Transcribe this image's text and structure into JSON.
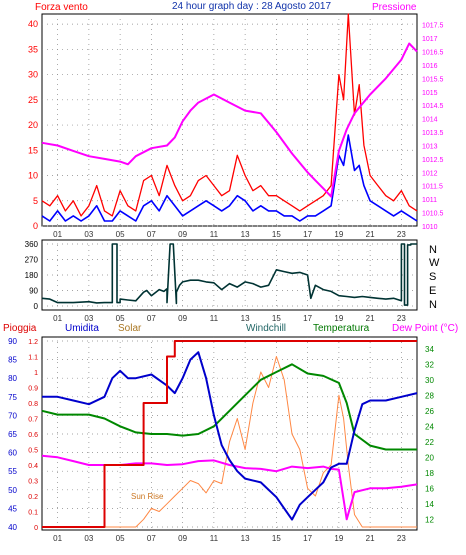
{
  "header": {
    "wind_label": "Forza vento",
    "title": "24 hour graph day : 28 Agosto 2017",
    "pressure_label": "Pressione"
  },
  "direction_labels": [
    "N",
    "W",
    "S",
    "E",
    "N"
  ],
  "lower_labels": {
    "rain": "Pioggia",
    "humidity": "Umidita",
    "solar": "Solar",
    "windchill": "Windchill",
    "temperature": "Temperatura",
    "dewpoint": "Dew Point (°C)",
    "sunrise": "Sun Rise"
  },
  "colors": {
    "wind_gust": "#ff0000",
    "wind_avg": "#0000ff",
    "pressure": "#ff00ff",
    "direction": "#003333",
    "rain": "#dd0000",
    "humidity": "#0000cc",
    "solar": "#ff8844",
    "temperature": "#008800",
    "dewpoint": "#ff00ff",
    "grid": "#888888"
  },
  "chart_data": [
    {
      "type": "line",
      "x_ticks": [
        "01",
        "03",
        "05",
        "07",
        "09",
        "11",
        "13",
        "15",
        "17",
        "19",
        "21",
        "23"
      ],
      "xlim": [
        0,
        24
      ],
      "y_left_ticks": [
        0,
        5,
        10,
        15,
        20,
        25,
        30,
        35,
        40
      ],
      "ylim_left": [
        0,
        42
      ],
      "y_right_ticks": [
        "1010",
        "1010.5",
        "1011",
        "1011.5",
        "1012",
        "1012.5",
        "1013",
        "1013.5",
        "1014",
        "1014.5",
        "1015",
        "1015.5",
        "1016",
        "1016.5",
        "1017",
        "1017.5"
      ],
      "ylim_right": [
        1010,
        1017.9
      ],
      "series": [
        {
          "name": "Forza vento",
          "axis": "left",
          "color": "#ff0000",
          "x": [
            0,
            0.5,
            1,
            1.5,
            2,
            2.5,
            3,
            3.5,
            4,
            4.5,
            5,
            5.5,
            6,
            6.5,
            7,
            7.5,
            8,
            8.5,
            9,
            9.5,
            10,
            10.5,
            11,
            11.5,
            12,
            12.5,
            13,
            13.5,
            14,
            14.5,
            15,
            15.5,
            16,
            16.5,
            17,
            17.5,
            18,
            18.5,
            19,
            19.3,
            19.6,
            20,
            20.3,
            20.6,
            21,
            21.5,
            22,
            22.5,
            23,
            23.5,
            24
          ],
          "y": [
            5,
            4,
            6,
            3,
            5,
            2,
            4,
            8,
            3,
            2,
            7,
            4,
            3,
            9,
            10,
            6,
            12,
            8,
            5,
            6,
            9,
            10,
            8,
            6,
            7,
            14,
            10,
            7,
            8,
            6,
            6,
            5,
            4,
            3,
            4,
            5,
            6,
            8,
            30,
            25,
            42,
            22,
            28,
            16,
            10,
            8,
            6,
            5,
            7,
            4,
            3
          ]
        },
        {
          "name": "",
          "axis": "left",
          "color": "#0000ff",
          "x": [
            0,
            0.5,
            1,
            1.5,
            2,
            2.5,
            3,
            3.5,
            4,
            4.5,
            5,
            5.5,
            6,
            6.5,
            7,
            7.5,
            8,
            8.5,
            9,
            9.5,
            10,
            10.5,
            11,
            11.5,
            12,
            12.5,
            13,
            13.5,
            14,
            14.5,
            15,
            15.5,
            16,
            16.5,
            17,
            17.5,
            18,
            18.5,
            19,
            19.3,
            19.6,
            20,
            20.3,
            20.6,
            21,
            21.5,
            22,
            22.5,
            23,
            23.5,
            24
          ],
          "y": [
            2,
            1,
            3,
            1,
            2,
            1,
            2,
            4,
            1,
            1,
            3,
            2,
            1,
            4,
            5,
            3,
            6,
            4,
            2,
            3,
            4,
            5,
            4,
            3,
            4,
            6,
            5,
            3,
            4,
            3,
            3,
            2,
            2,
            1,
            2,
            2,
            3,
            4,
            14,
            12,
            18,
            11,
            12,
            8,
            5,
            4,
            3,
            2,
            3,
            2,
            1
          ]
        },
        {
          "name": "Pressione",
          "axis": "right",
          "color": "#ff00ff",
          "x": [
            0,
            1,
            2,
            3,
            4,
            5,
            5.5,
            6,
            7,
            8,
            8.5,
            9,
            9.5,
            10,
            11,
            12,
            13,
            14,
            15,
            16,
            17,
            17.5,
            18,
            18.5,
            19,
            19.5,
            20,
            21,
            22,
            23,
            23.5,
            24
          ],
          "y": [
            1013.1,
            1013.0,
            1012.8,
            1012.6,
            1012.5,
            1012.4,
            1012.3,
            1012.6,
            1012.9,
            1013.0,
            1013.3,
            1013.9,
            1014.3,
            1014.6,
            1014.9,
            1014.6,
            1014.3,
            1014.2,
            1013.5,
            1012.7,
            1012.0,
            1011.7,
            1011.4,
            1011.1,
            1012.8,
            1013.6,
            1014.2,
            1014.9,
            1015.5,
            1016.2,
            1016.8,
            1016.5
          ]
        }
      ]
    },
    {
      "type": "line",
      "x_ticks": [
        "01",
        "03",
        "05",
        "07",
        "09",
        "11",
        "13",
        "15",
        "17",
        "19",
        "21",
        "23"
      ],
      "xlim": [
        0,
        24
      ],
      "y_ticks": [
        0,
        90,
        180,
        270,
        360
      ],
      "ylim": [
        0,
        360
      ],
      "series": [
        {
          "name": "",
          "color": "#003333",
          "x": [
            0,
            0.5,
            1,
            2,
            3,
            3.5,
            4,
            4.5,
            4.5,
            4.8,
            4.8,
            5,
            5,
            5.5,
            6,
            6.5,
            6.7,
            7,
            7.5,
            7.8,
            8,
            8,
            8.2,
            8.4,
            8.6,
            8.6,
            8.8,
            9,
            9.5,
            10,
            10.5,
            11,
            11.5,
            12,
            12.5,
            13,
            13.5,
            14,
            14.5,
            15,
            15.5,
            16,
            16.5,
            17,
            17.2,
            17.5,
            18,
            18.5,
            19,
            19.5,
            20,
            20.5,
            21,
            21.5,
            22,
            22.5,
            23,
            23,
            23.2,
            23.2,
            23.4,
            23.4,
            23.6,
            23.6,
            24,
            24
          ],
          "y": [
            45,
            40,
            20,
            20,
            25,
            18,
            20,
            20,
            360,
            360,
            20,
            20,
            40,
            35,
            30,
            80,
            90,
            60,
            95,
            85,
            100,
            20,
            360,
            360,
            15,
            80,
            120,
            140,
            150,
            150,
            140,
            135,
            95,
            130,
            110,
            140,
            130,
            110,
            120,
            210,
            200,
            190,
            195,
            180,
            45,
            120,
            95,
            85,
            60,
            55,
            50,
            55,
            50,
            45,
            40,
            45,
            30,
            360,
            360,
            5,
            5,
            355,
            355,
            360,
            360,
            360
          ]
        }
      ]
    },
    {
      "type": "line",
      "x_ticks": [
        "01",
        "03",
        "05",
        "07",
        "09",
        "11",
        "13",
        "15",
        "17",
        "19",
        "21",
        "23"
      ],
      "xlim": [
        0,
        24
      ],
      "rain_ticks": [
        "0",
        "0.1",
        "0.2",
        "0.3",
        "0.4",
        "0.5",
        "0.6",
        "0.7",
        "0.8",
        "0.9",
        "1",
        "1.1",
        "1.2"
      ],
      "rain_lim": [
        0,
        1.2
      ],
      "humidity_ticks": [
        40,
        45,
        50,
        55,
        60,
        65,
        70,
        75,
        80,
        85,
        90
      ],
      "humidity_lim": [
        40,
        90
      ],
      "temperature_ticks": [
        12,
        14,
        16,
        18,
        20,
        22,
        24,
        26,
        28,
        30,
        32,
        34
      ],
      "temperature_lim": [
        11,
        35
      ],
      "series": [
        {
          "name": "Pioggia",
          "color": "#dd0000",
          "x": [
            0,
            4,
            4,
            6.5,
            6.5,
            8,
            8,
            8.5,
            8.5,
            24
          ],
          "y": [
            0,
            0,
            0.4,
            0.4,
            0.8,
            0.8,
            1.1,
            1.1,
            1.2,
            1.2
          ]
        },
        {
          "name": "Umidita",
          "color": "#0000cc",
          "x": [
            0,
            1,
            2,
            3,
            4,
            4.5,
            5,
            5.5,
            6,
            7,
            8,
            8.5,
            9,
            9.5,
            10,
            10.5,
            11,
            11.5,
            12,
            12.5,
            13,
            14,
            15,
            15.5,
            16,
            16.5,
            17,
            17.5,
            18,
            18.5,
            19,
            19.5,
            20,
            20.5,
            21,
            22,
            23,
            24
          ],
          "y": [
            75,
            75,
            74,
            73,
            75,
            80,
            82,
            80,
            80,
            81,
            78,
            76,
            80,
            85,
            87,
            80,
            70,
            62,
            58,
            55,
            53,
            52,
            48,
            45,
            42,
            46,
            48,
            50,
            52,
            56,
            57,
            57,
            66,
            73,
            74,
            74,
            75,
            76
          ]
        },
        {
          "name": "Temperatura",
          "color": "#008800",
          "x": [
            0,
            1,
            2,
            3,
            4,
            5,
            6,
            7,
            8,
            9,
            10,
            11,
            12,
            13,
            14,
            15,
            16,
            17,
            18,
            19,
            19.5,
            20,
            21,
            22,
            23,
            24
          ],
          "y": [
            26,
            25.5,
            25.5,
            25.5,
            25,
            24,
            23.2,
            23,
            23,
            22.8,
            23,
            24,
            26,
            28,
            30,
            31,
            32,
            30.8,
            30.5,
            29.6,
            27,
            23,
            21.5,
            21,
            21,
            21
          ]
        },
        {
          "name": "Dew Point",
          "color": "#ff00ff",
          "x": [
            0,
            1,
            2,
            3,
            4,
            5,
            6,
            7,
            8,
            9,
            10,
            11,
            12,
            13,
            14,
            15,
            16,
            17,
            18,
            18.5,
            19,
            19.5,
            20,
            21,
            22,
            23,
            24
          ],
          "y": [
            20.2,
            20,
            19.5,
            19,
            19,
            19,
            19.2,
            19.2,
            19,
            19.1,
            19.5,
            19.6,
            19,
            18.6,
            18.5,
            18.2,
            18.8,
            18.6,
            18.8,
            18.5,
            18.4,
            12,
            15.5,
            16,
            16,
            16.2,
            16.5
          ]
        },
        {
          "name": "Solar",
          "color": "#ff8844",
          "x": [
            0,
            6,
            6.5,
            7,
            7.5,
            8,
            8.5,
            9,
            9.5,
            10,
            10.5,
            11,
            11.5,
            12,
            12.5,
            13,
            13.5,
            14,
            14.5,
            15,
            15.5,
            16,
            16.5,
            17,
            17.5,
            18,
            18.5,
            19,
            19.3,
            19.6,
            20,
            20.5,
            24
          ],
          "y": [
            0,
            0,
            0.05,
            0.12,
            0.1,
            0.15,
            0.2,
            0.25,
            0.3,
            0.28,
            0.22,
            0.3,
            0.28,
            0.55,
            0.7,
            0.5,
            0.8,
            1.0,
            0.9,
            1.1,
            0.95,
            0.6,
            0.5,
            0.25,
            0.2,
            0.35,
            0.4,
            0.85,
            0.7,
            0.4,
            0.08,
            0,
            0
          ]
        }
      ]
    }
  ]
}
